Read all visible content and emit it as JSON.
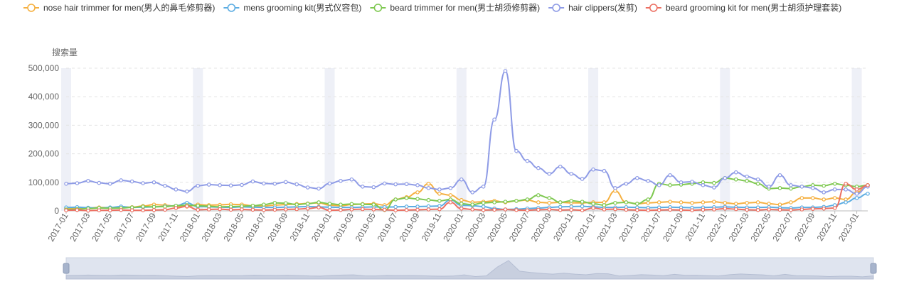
{
  "chart_data": {
    "type": "line",
    "ylabel": "搜索量",
    "ylim": [
      0,
      500000
    ],
    "yticks": [
      0,
      100000,
      200000,
      300000,
      400000,
      500000
    ],
    "ytick_labels": [
      "0",
      "100,000",
      "200,000",
      "300,000",
      "400,000",
      "500,000"
    ],
    "grid": true,
    "legend_position": "top",
    "x_start": "2017-01",
    "x": [
      "2017-01",
      "2017-02",
      "2017-03",
      "2017-04",
      "2017-05",
      "2017-06",
      "2017-07",
      "2017-08",
      "2017-09",
      "2017-10",
      "2017-11",
      "2017-12",
      "2018-01",
      "2018-02",
      "2018-03",
      "2018-04",
      "2018-05",
      "2018-06",
      "2018-07",
      "2018-08",
      "2018-09",
      "2018-10",
      "2018-11",
      "2018-12",
      "2019-01",
      "2019-02",
      "2019-03",
      "2019-04",
      "2019-05",
      "2019-06",
      "2019-07",
      "2019-08",
      "2019-09",
      "2019-10",
      "2019-11",
      "2019-12",
      "2020-01",
      "2020-02",
      "2020-03",
      "2020-04",
      "2020-05",
      "2020-06",
      "2020-07",
      "2020-08",
      "2020-09",
      "2020-10",
      "2020-11",
      "2020-12",
      "2021-01",
      "2021-02",
      "2021-03",
      "2021-04",
      "2021-05",
      "2021-06",
      "2021-07",
      "2021-08",
      "2021-09",
      "2021-10",
      "2021-11",
      "2021-12",
      "2022-01",
      "2022-02",
      "2022-03",
      "2022-04",
      "2022-05",
      "2022-06",
      "2022-07",
      "2022-08",
      "2022-09",
      "2022-10",
      "2022-11",
      "2022-12",
      "2023-01",
      "2023-02"
    ],
    "x_tick_labels": [
      "2017-01",
      "2017-03",
      "2017-05",
      "2017-07",
      "2017-09",
      "2017-11",
      "2018-01",
      "2018-03",
      "2018-05",
      "2018-07",
      "2018-09",
      "2018-11",
      "2019-01",
      "2019-03",
      "2019-05",
      "2019-07",
      "2019-09",
      "2019-11",
      "2020-01",
      "2020-03",
      "2020-05",
      "2020-07",
      "2020-09",
      "2020-11",
      "2021-01",
      "2021-03",
      "2021-05",
      "2021-07",
      "2021-09",
      "2021-11",
      "2022-01",
      "2022-03",
      "2022-05",
      "2022-07",
      "2022-09",
      "2022-11",
      "2023-01"
    ],
    "series": [
      {
        "name": "nose hair trimmer for men(男人的鼻毛修剪器)",
        "color": "#f5b041",
        "values": [
          10000,
          8000,
          10000,
          12000,
          11000,
          14000,
          13000,
          17000,
          22000,
          20000,
          16000,
          15000,
          22000,
          20000,
          21000,
          23000,
          22000,
          18000,
          17000,
          20000,
          22000,
          24000,
          26000,
          28000,
          20000,
          18000,
          22000,
          24000,
          25000,
          20000,
          40000,
          48000,
          65000,
          95000,
          60000,
          55000,
          38000,
          30000,
          32000,
          35000,
          30000,
          35000,
          38000,
          30000,
          28000,
          30000,
          28000,
          28000,
          30000,
          30000,
          70000,
          30000,
          25000,
          28000,
          30000,
          32000,
          30000,
          28000,
          30000,
          32000,
          28000,
          25000,
          28000,
          30000,
          25000,
          22000,
          30000,
          45000,
          45000,
          40000,
          45000,
          40000,
          65000,
          90000
        ]
      },
      {
        "name": "mens grooming kit(男式仪容包)",
        "color": "#5dade2",
        "values": [
          12000,
          13000,
          11000,
          10000,
          12000,
          15000,
          12000,
          13000,
          14000,
          16000,
          18000,
          28000,
          15000,
          14000,
          13000,
          12000,
          14000,
          13000,
          12000,
          12000,
          13000,
          14000,
          15000,
          14000,
          13000,
          12000,
          12000,
          13000,
          14000,
          13000,
          14000,
          15000,
          15000,
          16000,
          17000,
          38000,
          20000,
          18000,
          15000,
          8000,
          5000,
          6000,
          8000,
          10000,
          12000,
          14000,
          15000,
          16000,
          14000,
          12000,
          12000,
          13000,
          12000,
          11000,
          12000,
          13000,
          12000,
          11000,
          12000,
          13000,
          14000,
          13000,
          12000,
          12000,
          13000,
          11000,
          10000,
          12000,
          12000,
          14000,
          20000,
          30000,
          45000,
          60000
        ]
      },
      {
        "name": "beard trimmer for men(男士胡须修剪器)",
        "color": "#7ec850",
        "values": [
          5000,
          6000,
          8000,
          10000,
          9000,
          10000,
          12000,
          15000,
          14000,
          15000,
          18000,
          20000,
          18000,
          16000,
          14000,
          15000,
          16000,
          18000,
          22000,
          28000,
          27000,
          22000,
          25000,
          30000,
          25000,
          22000,
          24000,
          23000,
          22000,
          3000,
          40000,
          45000,
          42000,
          38000,
          35000,
          40000,
          25000,
          22000,
          28000,
          30000,
          32000,
          35000,
          40000,
          55000,
          45000,
          30000,
          35000,
          32000,
          25000,
          20000,
          28000,
          30000,
          25000,
          40000,
          95000,
          90000,
          92000,
          95000,
          100000,
          98000,
          115000,
          110000,
          105000,
          95000,
          78000,
          80000,
          78000,
          85000,
          90000,
          88000,
          95000,
          90000,
          85000,
          90000
        ]
      },
      {
        "name": "hair clippers(发剪)",
        "color": "#8e9be6",
        "values": [
          95000,
          97000,
          105000,
          98000,
          95000,
          107000,
          103000,
          97000,
          100000,
          88000,
          75000,
          68000,
          88000,
          92000,
          90000,
          89000,
          91000,
          103000,
          96000,
          95000,
          101000,
          93000,
          82000,
          78000,
          96000,
          105000,
          110000,
          85000,
          83000,
          96000,
          93000,
          94000,
          90000,
          80000,
          75000,
          80000,
          110000,
          65000,
          85000,
          320000,
          490000,
          210000,
          175000,
          150000,
          130000,
          155000,
          130000,
          112000,
          145000,
          140000,
          80000,
          95000,
          115000,
          105000,
          90000,
          125000,
          100000,
          102000,
          90000,
          82000,
          115000,
          135000,
          120000,
          110000,
          85000,
          125000,
          90000,
          85000,
          80000,
          65000,
          75000,
          75000,
          60000,
          85000
        ]
      },
      {
        "name": "beard grooming kit for men(男士胡须护理套装)",
        "color": "#ec7063",
        "values": [
          2000,
          3000,
          1000,
          2000,
          2000,
          3000,
          2000,
          2000,
          3000,
          4000,
          10000,
          16000,
          4000,
          5000,
          6000,
          4000,
          5000,
          4000,
          3000,
          4000,
          5000,
          6000,
          8000,
          12000,
          2000,
          3000,
          5000,
          6000,
          5000,
          4000,
          2000,
          3000,
          4000,
          5000,
          6000,
          30000,
          8000,
          5000,
          3000,
          4000,
          5000,
          3000,
          2000,
          4000,
          5000,
          3000,
          4000,
          2000,
          10000,
          5000,
          6000,
          4000,
          3000,
          2000,
          3000,
          4000,
          3000,
          2000,
          4000,
          5000,
          8000,
          6000,
          4000,
          3000,
          5000,
          4000,
          3000,
          5000,
          7000,
          8000,
          10000,
          95000,
          75000,
          90000
        ]
      }
    ]
  }
}
